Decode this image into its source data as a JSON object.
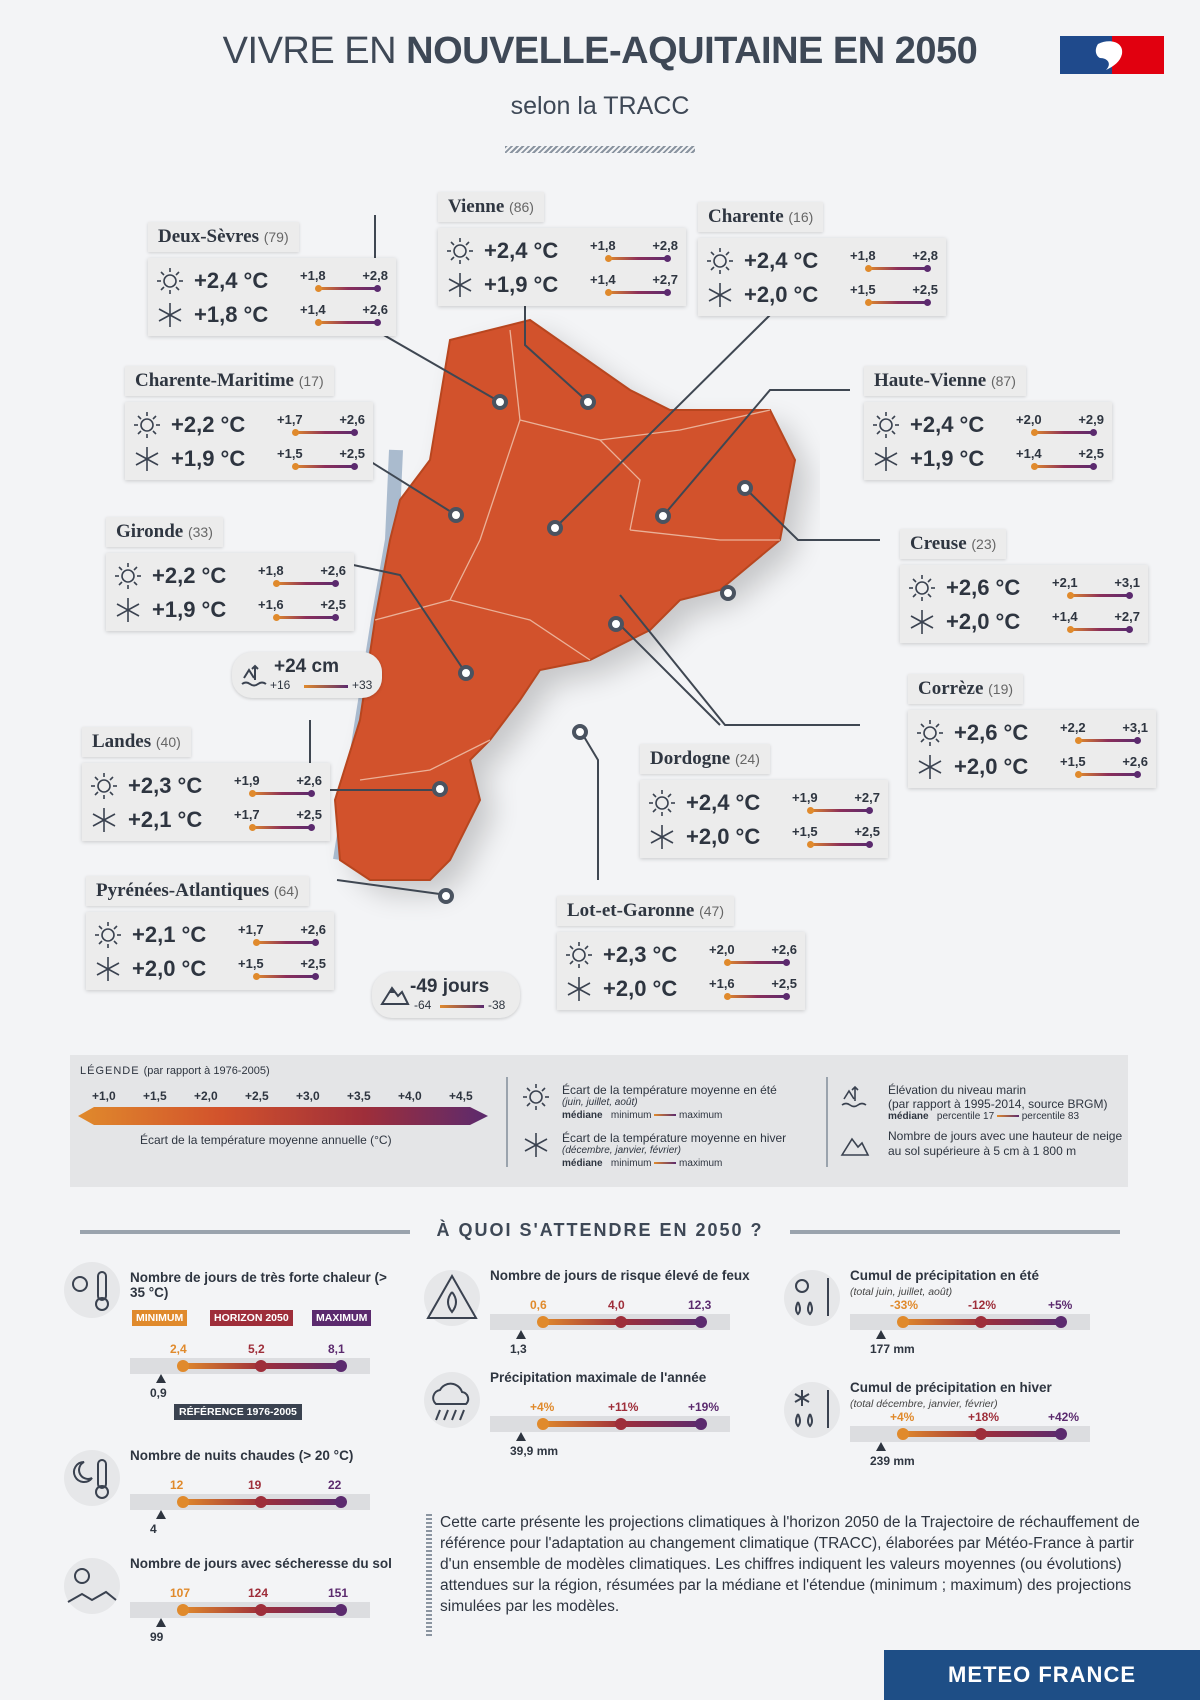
{
  "header": {
    "title_prefix": "VIVRE EN ",
    "title_bold": "NOUVELLE-AQUITAINE EN 2050",
    "subtitle": "selon la TRACC"
  },
  "departments": [
    {
      "name": "Deux-Sèvres",
      "code": "(79)",
      "summer": {
        "median": "+2,4 °C",
        "min": "+1,8",
        "max": "+2,8"
      },
      "winter": {
        "median": "+1,8 °C",
        "min": "+1,4",
        "max": "+2,6"
      }
    },
    {
      "name": "Vienne",
      "code": "(86)",
      "summer": {
        "median": "+2,4 °C",
        "min": "+1,8",
        "max": "+2,8"
      },
      "winter": {
        "median": "+1,9 °C",
        "min": "+1,4",
        "max": "+2,7"
      }
    },
    {
      "name": "Charente",
      "code": "(16)",
      "summer": {
        "median": "+2,4 °C",
        "min": "+1,8",
        "max": "+2,8"
      },
      "winter": {
        "median": "+2,0 °C",
        "min": "+1,5",
        "max": "+2,5"
      }
    },
    {
      "name": "Charente-Maritime",
      "code": "(17)",
      "summer": {
        "median": "+2,2 °C",
        "min": "+1,7",
        "max": "+2,6"
      },
      "winter": {
        "median": "+1,9 °C",
        "min": "+1,5",
        "max": "+2,5"
      }
    },
    {
      "name": "Haute-Vienne",
      "code": "(87)",
      "summer": {
        "median": "+2,4 °C",
        "min": "+2,0",
        "max": "+2,9"
      },
      "winter": {
        "median": "+1,9 °C",
        "min": "+1,4",
        "max": "+2,5"
      }
    },
    {
      "name": "Gironde",
      "code": "(33)",
      "summer": {
        "median": "+2,2 °C",
        "min": "+1,8",
        "max": "+2,6"
      },
      "winter": {
        "median": "+1,9 °C",
        "min": "+1,6",
        "max": "+2,5"
      }
    },
    {
      "name": "Creuse",
      "code": "(23)",
      "summer": {
        "median": "+2,6 °C",
        "min": "+2,1",
        "max": "+3,1"
      },
      "winter": {
        "median": "+2,0 °C",
        "min": "+1,4",
        "max": "+2,7"
      }
    },
    {
      "name": "Corrèze",
      "code": "(19)",
      "summer": {
        "median": "+2,6 °C",
        "min": "+2,2",
        "max": "+3,1"
      },
      "winter": {
        "median": "+2,0 °C",
        "min": "+1,5",
        "max": "+2,6"
      }
    },
    {
      "name": "Landes",
      "code": "(40)",
      "summer": {
        "median": "+2,3 °C",
        "min": "+1,9",
        "max": "+2,6"
      },
      "winter": {
        "median": "+2,1 °C",
        "min": "+1,7",
        "max": "+2,5"
      }
    },
    {
      "name": "Dordogne",
      "code": "(24)",
      "summer": {
        "median": "+2,4 °C",
        "min": "+1,9",
        "max": "+2,7"
      },
      "winter": {
        "median": "+2,0 °C",
        "min": "+1,5",
        "max": "+2,5"
      }
    },
    {
      "name": "Pyrénées-Atlantiques",
      "code": "(64)",
      "summer": {
        "median": "+2,1 °C",
        "min": "+1,7",
        "max": "+2,6"
      },
      "winter": {
        "median": "+2,0 °C",
        "min": "+1,5",
        "max": "+2,5"
      }
    },
    {
      "name": "Lot-et-Garonne",
      "code": "(47)",
      "summer": {
        "median": "+2,3 °C",
        "min": "+2,0",
        "max": "+2,6"
      },
      "winter": {
        "median": "+2,0 °C",
        "min": "+1,6",
        "max": "+2,5"
      }
    }
  ],
  "sea_level": {
    "median": "+24 cm",
    "min": "+16",
    "max": "+33"
  },
  "snow_days": {
    "median": "-49 jours",
    "min": "-64",
    "max": "-38"
  },
  "legend": {
    "title": "LÉGENDE",
    "title_note": "(par rapport à 1976-2005)",
    "scale": [
      "+1,0",
      "+1,5",
      "+2,0",
      "+2,5",
      "+3,0",
      "+3,5",
      "+4,0",
      "+4,5"
    ],
    "scale_label": "Écart de la température moyenne annuelle (°C)",
    "summer_label": "Écart de la température moyenne en été",
    "summer_sub": "(juin, juillet, août)",
    "winter_label": "Écart de la température moyenne en hiver",
    "winter_sub": "(décembre, janvier, février)",
    "median": "médiane",
    "minimum": "minimum",
    "maximum": "maximum",
    "sea_label": "Élévation du niveau marin",
    "sea_sub": "(par rapport à 1995-2014, source BRGM)",
    "p17": "percentile 17",
    "p83": "percentile 83",
    "snow_label": "Nombre de jours avec une hauteur de neige au sol supérieure à 5 cm à 1 800 m"
  },
  "section_title": "À QUOI S'ATTENDRE EN 2050 ?",
  "indicators": {
    "heat_days": {
      "title": "Nombre de jours de très forte chaleur (> 35 °C)",
      "min": "2,4",
      "median": "5,2",
      "max": "8,1",
      "ref": "0,9",
      "tag_min": "MINIMUM",
      "tag_med": "HORIZON 2050",
      "tag_max": "MAXIMUM",
      "tag_ref": "RÉFÉRENCE 1976-2005"
    },
    "warm_nights": {
      "title": "Nombre de nuits chaudes (> 20 °C)",
      "min": "12",
      "median": "19",
      "max": "22",
      "ref": "4"
    },
    "drought": {
      "title": "Nombre de jours avec sécheresse du sol",
      "min": "107",
      "median": "124",
      "max": "151",
      "ref": "99"
    },
    "fire": {
      "title": "Nombre de jours de risque élevé de feux",
      "min": "0,6",
      "median": "4,0",
      "max": "12,3",
      "ref": "1,3"
    },
    "max_precip": {
      "title": "Précipitation maximale de l'année",
      "min": "+4%",
      "median": "+11%",
      "max": "+19%",
      "ref": "39,9 mm"
    },
    "summer_precip": {
      "title": "Cumul de précipitation en été",
      "sub": "(total juin, juillet, août)",
      "min": "-33%",
      "median": "-12%",
      "max": "+5%",
      "ref": "177 mm"
    },
    "winter_precip": {
      "title": "Cumul de précipitation en hiver",
      "sub": "(total décembre, janvier, février)",
      "min": "+4%",
      "median": "+18%",
      "max": "+42%",
      "ref": "239 mm"
    }
  },
  "description": "Cette carte présente les projections climatiques à l'horizon 2050 de la Trajectoire de réchauffement de référence pour l'adaptation au changement climatique (TRACC), élaborées par Météo-France à partir d'un ensemble de modèles climatiques. Les chiffres indiquent les valeurs moyennes (ou évolutions) attendues sur la région, résumées par la médiane et l'étendue (minimum ; maximum) des projections simulées par les modèles.",
  "brand": "METEO FRANCE",
  "colors": {
    "region": "#d2522c",
    "scale_start": "#e08a2c",
    "scale_end": "#5b2a6e",
    "brand": "#1e4e86"
  }
}
